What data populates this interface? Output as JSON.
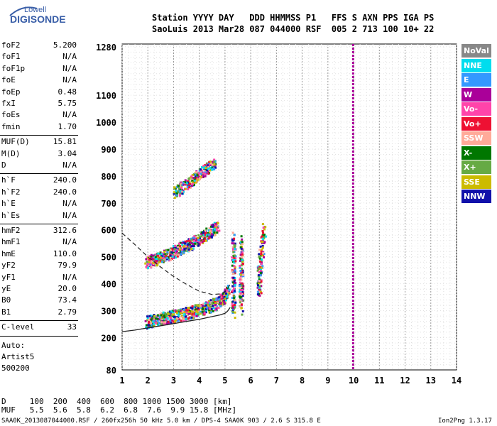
{
  "logo": {
    "top": "Lowell",
    "main": "DIGISONDE"
  },
  "header": {
    "line1": "Station YYYY DAY   DDD HHMMSS P1   FFS S AXN PPS IGA PS",
    "line2": "SaoLuis 2013 Mar28 087 044000 RSF  005 2 713 100 10+ 22"
  },
  "params_group1": [
    {
      "k": "foF2",
      "v": "5.200"
    },
    {
      "k": "foF1",
      "v": "N/A"
    },
    {
      "k": "foF1p",
      "v": "N/A"
    },
    {
      "k": "foE",
      "v": "N/A"
    },
    {
      "k": "foEp",
      "v": "0.48"
    },
    {
      "k": "fxI",
      "v": "5.75"
    },
    {
      "k": "foEs",
      "v": "N/A"
    },
    {
      "k": "fmin",
      "v": "1.70"
    }
  ],
  "params_group2": [
    {
      "k": "MUF(D)",
      "v": "15.81"
    },
    {
      "k": "M(D)",
      "v": "3.04"
    },
    {
      "k": "D",
      "v": "N/A"
    }
  ],
  "params_group3": [
    {
      "k": "h`F",
      "v": "240.0"
    },
    {
      "k": "h`F2",
      "v": "240.0"
    },
    {
      "k": "h`E",
      "v": "N/A"
    },
    {
      "k": "h`Es",
      "v": "N/A"
    }
  ],
  "params_group4": [
    {
      "k": "hmF2",
      "v": "312.6"
    },
    {
      "k": "hmF1",
      "v": "N/A"
    },
    {
      "k": "hmE",
      "v": "110.0"
    },
    {
      "k": "yF2",
      "v": "79.9"
    },
    {
      "k": "yF1",
      "v": "N/A"
    },
    {
      "k": "yE",
      "v": "20.0"
    },
    {
      "k": "B0",
      "v": "73.4"
    },
    {
      "k": "B1",
      "v": "2.79"
    }
  ],
  "params_group5": [
    {
      "k": "C-level",
      "v": "33"
    }
  ],
  "auto_info": [
    "Auto:",
    "Artist5",
    "500200"
  ],
  "legend": [
    {
      "label": "NoVal",
      "color": "#888888"
    },
    {
      "label": "NNE",
      "color": "#00ddee"
    },
    {
      "label": "E",
      "color": "#3399ff"
    },
    {
      "label": "W",
      "color": "#aa0099"
    },
    {
      "label": "Vo-",
      "color": "#ff44aa"
    },
    {
      "label": "Vo+",
      "color": "#ee1133"
    },
    {
      "label": "SSW",
      "color": "#ffaa99"
    },
    {
      "label": "X-",
      "color": "#007700"
    },
    {
      "label": "X+",
      "color": "#66aa44"
    },
    {
      "label": "SSE",
      "color": "#ccbb00"
    },
    {
      "label": "NNW",
      "color": "#1111aa"
    }
  ],
  "footer": {
    "line1": "D     100  200  400  600  800 1000 1500 3000 [km]",
    "line2": "MUF   5.5  5.6  5.8  6.2  6.8  7.6  9.9 15.8 [MHz]",
    "line3": "SAA0K_2013087044000.RSF / 260fx256h 50 kHz 5.0 km / DPS-4 SAA0K 903 / 2.6 S 315.8 E",
    "version": "Ion2Png 1.3.17"
  },
  "chart_data": {
    "type": "scatter",
    "title": "",
    "xlabel": "",
    "ylabel": "",
    "xlim": [
      1,
      14
    ],
    "ylim": [
      80,
      1290
    ],
    "x_ticks": [
      1,
      2,
      3,
      4,
      5,
      6,
      7,
      8,
      9,
      10,
      11,
      12,
      13,
      14
    ],
    "y_ticks": [
      80,
      200,
      300,
      400,
      500,
      600,
      700,
      800,
      900,
      1000,
      1100,
      1280
    ],
    "grid": true,
    "legend_placement": "right",
    "marker_vertical_line": {
      "x": 9.98,
      "color": "#aa0099"
    },
    "profile_curve": {
      "x": [
        1.0,
        1.5,
        2.0,
        2.5,
        3.0,
        3.5,
        4.0,
        4.5,
        4.8,
        5.0,
        5.1,
        5.2
      ],
      "y": [
        222,
        228,
        236,
        244,
        252,
        260,
        268,
        278,
        284,
        290,
        298,
        312
      ]
    },
    "virtual_height_trace": {
      "x": [
        1.0,
        1.5,
        2.0,
        2.5,
        3.0,
        3.5,
        4.0,
        4.5,
        4.8,
        5.0,
        5.1,
        5.2
      ],
      "y": [
        588,
        545,
        500,
        462,
        427,
        398,
        372,
        360,
        362,
        370,
        382,
        398
      ]
    },
    "echo_traces": [
      {
        "name": "F1 trace",
        "x": [
          1.9,
          2.2,
          2.6,
          3.0,
          3.4,
          3.8,
          4.2,
          4.6,
          4.9,
          5.1
        ],
        "y": [
          250,
          258,
          266,
          274,
          282,
          292,
          304,
          318,
          338,
          370
        ]
      },
      {
        "name": "F2 trace",
        "x": [
          1.9,
          2.3,
          2.7,
          3.1,
          3.5,
          3.9,
          4.3,
          4.7
        ],
        "y": [
          470,
          486,
          500,
          518,
          534,
          556,
          578,
          606
        ]
      },
      {
        "name": "F3 trace",
        "x": [
          3.0,
          3.4,
          3.8,
          4.2,
          4.6
        ],
        "y": [
          730,
          758,
          786,
          816,
          846
        ]
      },
      {
        "name": "band 5.3",
        "x": [
          5.3,
          5.3,
          5.3,
          5.3
        ],
        "y": [
          300,
          380,
          480,
          580
        ]
      },
      {
        "name": "band 5.6",
        "x": [
          5.6,
          5.6,
          5.6,
          5.6
        ],
        "y": [
          310,
          400,
          480,
          560
        ]
      },
      {
        "name": "band 6.3",
        "x": [
          6.3,
          6.3,
          6.4,
          6.5
        ],
        "y": [
          370,
          450,
          530,
          610
        ]
      }
    ]
  }
}
